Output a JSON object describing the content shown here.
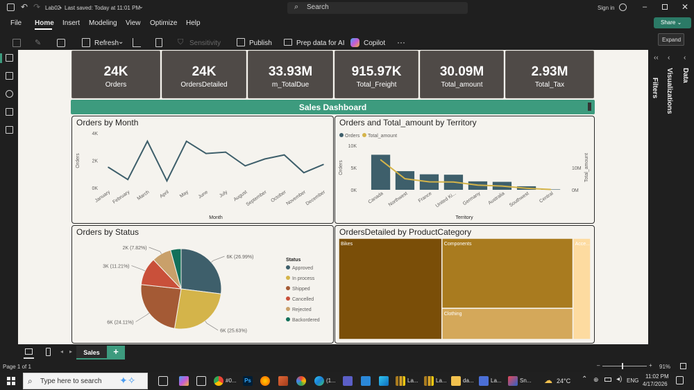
{
  "titlebar": {
    "file_name": "Lab02",
    "saved_status": "Last saved: Today at 11:01 PM",
    "search_placeholder": "Search",
    "sign_in": "Sign in"
  },
  "menu": [
    "File",
    "Home",
    "Insert",
    "Modeling",
    "View",
    "Optimize",
    "Help"
  ],
  "share_label": "Share",
  "ribbon": {
    "refresh": "Refresh",
    "sensitivity": "Sensitivity",
    "publish": "Publish",
    "prep_data": "Prep data for AI",
    "copilot": "Copilot",
    "more": "···"
  },
  "right_panes": {
    "expand_tooltip": "Expand",
    "filters": "Filters",
    "visualizations": "Visualizations",
    "data": "Data"
  },
  "kpis": [
    {
      "value": "24K",
      "label": "Orders"
    },
    {
      "value": "24K",
      "label": "OrdersDetailed"
    },
    {
      "value": "33.93M",
      "label": "m_TotalDue"
    },
    {
      "value": "915.97K",
      "label": "Total_Freight"
    },
    {
      "value": "30.09M",
      "label": "Total_amount"
    },
    {
      "value": "2.93M",
      "label": "Total_Tax"
    }
  ],
  "banner_title": "Sales Dashboard",
  "chart_data": [
    {
      "type": "line",
      "title": "Orders by Month",
      "xlabel": "Month",
      "ylabel": "Orders",
      "categories": [
        "January",
        "February",
        "March",
        "April",
        "May",
        "June",
        "July",
        "August",
        "September",
        "October",
        "November",
        "December"
      ],
      "values": [
        1500,
        600,
        3400,
        500,
        3400,
        2500,
        2600,
        1600,
        2100,
        2400,
        1100,
        1700
      ],
      "ylim": [
        0,
        4000
      ],
      "yticks": [
        "0K",
        "2K",
        "4K"
      ],
      "color": "#3e5f6b"
    },
    {
      "type": "bar",
      "title": "Orders and Total_amount by Territory",
      "xlabel": "Territory",
      "ylabel": "Orders",
      "ylabel_right": "Total_amount",
      "categories": [
        "Canada",
        "Northwest",
        "France",
        "United Ki...",
        "Germany",
        "Australia",
        "Southwest",
        "Central"
      ],
      "series": [
        {
          "name": "Orders",
          "values": [
            7900,
            4200,
            3500,
            3400,
            1900,
            1800,
            800,
            100
          ],
          "color": "#3e5f6b"
        },
        {
          "name": "Total_amount",
          "values": [
            13500000,
            5000000,
            3600000,
            3500000,
            2100000,
            1700000,
            700000,
            150000
          ],
          "color": "#d4b44a"
        }
      ],
      "ylim": [
        0,
        10000
      ],
      "yticks": [
        "0K",
        "5K",
        "10K"
      ],
      "ylim_right": [
        0,
        20000000
      ],
      "yticks_right": [
        "0M",
        "10M"
      ],
      "legend_placement": "top-left"
    },
    {
      "type": "pie",
      "title": "Orders by Status",
      "legend_title": "Status",
      "slices": [
        {
          "name": "Approved",
          "value": 26.99,
          "label": "6K (26.99%)",
          "color": "#3e5f6b"
        },
        {
          "name": "In process",
          "value": 25.63,
          "label": "6K (25.63%)",
          "color": "#d4b44a"
        },
        {
          "name": "Shipped",
          "value": 24.11,
          "label": "6K (24.11%)",
          "color": "#a45a35"
        },
        {
          "name": "Cancelled",
          "value": 11.21,
          "label": "3K (11.21%)",
          "color": "#c9503a"
        },
        {
          "name": "Rejected",
          "value": 7.82,
          "label": "2K (7.82%)",
          "color": "#c9a06a"
        },
        {
          "name": "Backordered",
          "value": 4.24,
          "label": "",
          "color": "#13705a"
        }
      ],
      "legend_placement": "right"
    },
    {
      "type": "treemap",
      "title": "OrdersDetailed by ProductCategory",
      "items": [
        {
          "name": "Bikes",
          "value": 41,
          "color": "#7a4e08"
        },
        {
          "name": "Components",
          "value": 36,
          "color": "#a97b1f"
        },
        {
          "name": "Clothing",
          "value": 16,
          "color": "#d4a85a"
        },
        {
          "name": "Acce...",
          "value": 7,
          "color": "#fddba0"
        }
      ]
    }
  ],
  "page_tab": "Sales",
  "status": {
    "page": "Page 1 of 1",
    "zoom": "91%"
  },
  "taskbar": {
    "search_placeholder": "Type here to search",
    "temperature": "24°C",
    "language": "ENG",
    "time": "11:02 PM",
    "date": "4/17/2026",
    "apps": [
      "#0...",
      "(1...",
      "La...",
      "La...",
      "da...",
      "La...",
      "Sn..."
    ]
  }
}
